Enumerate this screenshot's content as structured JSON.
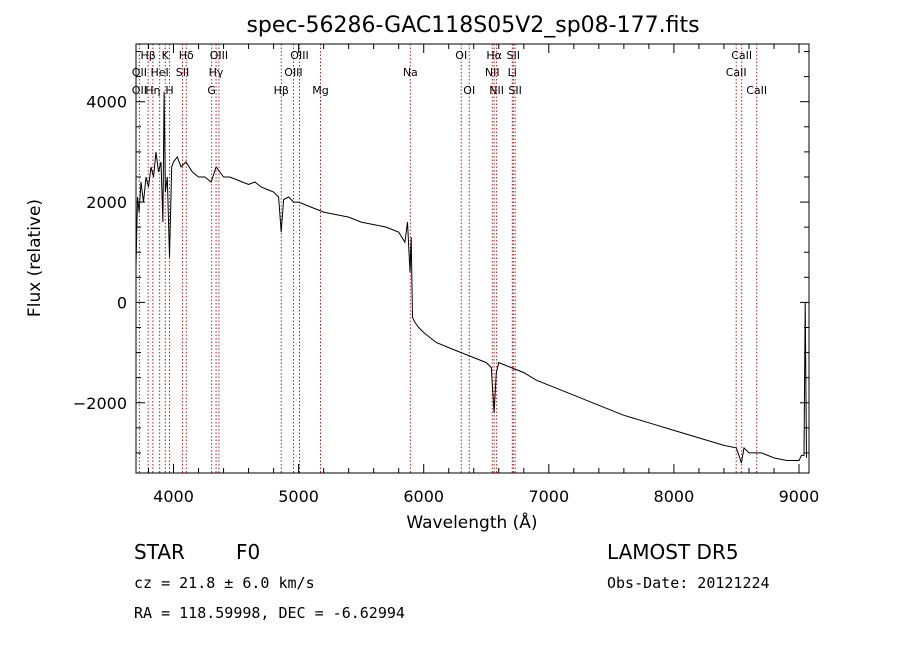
{
  "chart_data": {
    "type": "line",
    "title": "spec-56286-GAC118S05V2_sp08-177.fits",
    "xlabel": "Wavelength (Å)",
    "ylabel": "Flux (relative)",
    "xlim": [
      3700,
      9080
    ],
    "ylim": [
      -3400,
      5150
    ],
    "xticks": [
      4000,
      5000,
      6000,
      7000,
      8000,
      9000
    ],
    "yticks": [
      -2000,
      0,
      2000,
      4000
    ],
    "grid": false,
    "line_color": "#000000",
    "marker_color": "#b22222",
    "series": [
      {
        "x": [
          3700,
          3712,
          3725,
          3740,
          3760,
          3780,
          3800,
          3820,
          3840,
          3860,
          3880,
          3900,
          3915,
          3925,
          3935,
          3950,
          3968,
          3985,
          4000,
          4030,
          4060,
          4100,
          4150,
          4200,
          4250,
          4300,
          4340,
          4400,
          4450,
          4500,
          4550,
          4600,
          4650,
          4700,
          4750,
          4800,
          4840,
          4861,
          4880,
          4920,
          4960,
          5000,
          5050,
          5100,
          5150,
          5200,
          5300,
          5400,
          5500,
          5600,
          5700,
          5800,
          5850,
          5870,
          5890,
          5900,
          5910,
          5930,
          5960,
          6000,
          6100,
          6200,
          6300,
          6400,
          6500,
          6540,
          6563,
          6580,
          6600,
          6700,
          6800,
          6900,
          7000,
          7200,
          7400,
          7600,
          7800,
          8000,
          8200,
          8400,
          8500,
          8540,
          8560,
          8600,
          8700,
          8800,
          8900,
          9000,
          9020,
          9040,
          9050,
          9060
        ],
        "y": [
          700,
          2100,
          1800,
          2400,
          2000,
          2500,
          2300,
          2700,
          2500,
          3000,
          2600,
          2800,
          1600,
          4200,
          2200,
          2500,
          900,
          2700,
          2800,
          2900,
          2700,
          2800,
          2600,
          2500,
          2500,
          2400,
          2700,
          2500,
          2500,
          2450,
          2400,
          2350,
          2400,
          2300,
          2250,
          2200,
          2100,
          1400,
          2050,
          2100,
          2000,
          2000,
          1950,
          1900,
          1850,
          1800,
          1750,
          1700,
          1600,
          1550,
          1500,
          1400,
          1200,
          1600,
          600,
          1300,
          -300,
          -400,
          -500,
          -600,
          -800,
          -900,
          -1000,
          -1100,
          -1200,
          -1300,
          -2200,
          -1400,
          -1200,
          -1300,
          -1400,
          -1550,
          -1650,
          -1850,
          -2050,
          -2250,
          -2400,
          -2550,
          -2700,
          -2850,
          -2900,
          -3200,
          -2900,
          -3000,
          -3000,
          -3100,
          -3150,
          -3150,
          -3050,
          -3050,
          0,
          -3100
        ]
      }
    ],
    "lines": [
      {
        "label": "Hβ",
        "x": 3797,
        "row": 0
      },
      {
        "label": "OII",
        "x": 3727,
        "row": 1
      },
      {
        "label": "OII",
        "x": 3727,
        "row": 2
      },
      {
        "label": "K",
        "x": 3934,
        "row": 0
      },
      {
        "label": "HeI",
        "x": 3889,
        "row": 1
      },
      {
        "label": "Hη",
        "x": 3835,
        "row": 2
      },
      {
        "label": "H",
        "x": 3968,
        "row": 2
      },
      {
        "label": "Hδ",
        "x": 4102,
        "row": 0
      },
      {
        "label": "SII",
        "x": 4072,
        "row": 1
      },
      {
        "label": "OIII",
        "x": 4363,
        "row": 0
      },
      {
        "label": "Hγ",
        "x": 4340,
        "row": 1
      },
      {
        "label": "G",
        "x": 4305,
        "row": 2
      },
      {
        "label": "Hβ",
        "x": 4861,
        "row": 2
      },
      {
        "label": "OIII",
        "x": 5007,
        "row": 0
      },
      {
        "label": "OIII",
        "x": 4959,
        "row": 1
      },
      {
        "label": "Mg",
        "x": 5175,
        "row": 2
      },
      {
        "label": "Na",
        "x": 5893,
        "row": 1
      },
      {
        "label": "OI",
        "x": 6300,
        "row": 0
      },
      {
        "label": "OI",
        "x": 6364,
        "row": 2
      },
      {
        "label": "Hα",
        "x": 6563,
        "row": 0
      },
      {
        "label": "SII",
        "x": 6716,
        "row": 0
      },
      {
        "label": "NII",
        "x": 6548,
        "row": 1
      },
      {
        "label": "Li",
        "x": 6708,
        "row": 1
      },
      {
        "label": "NII",
        "x": 6583,
        "row": 2
      },
      {
        "label": "SII",
        "x": 6731,
        "row": 2
      },
      {
        "label": "CaII",
        "x": 8542,
        "row": 0
      },
      {
        "label": "CaII",
        "x": 8498,
        "row": 1
      },
      {
        "label": "CaII",
        "x": 8662,
        "row": 2
      }
    ]
  },
  "info": {
    "object_class": "STAR",
    "subclass": "F0",
    "survey": "LAMOST DR5",
    "redshift": "cz = 21.8 ± 6.0 km/s",
    "obs_date": "Obs-Date: 20121224",
    "coords": "RA = 118.59998, DEC =  -6.62994"
  }
}
